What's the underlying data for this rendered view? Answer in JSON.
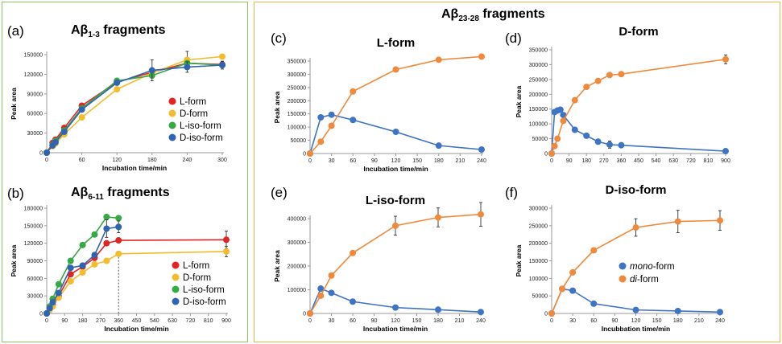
{
  "colors": {
    "L": "#e02424",
    "D": "#f2bc2e",
    "Liso": "#36a844",
    "Diso": "#2f64b3",
    "mono": "#3f73c4",
    "di": "#ef8a3c"
  },
  "group_left": {
    "title_main": "Aβ",
    "title_sub": "1-3",
    "title_rest": " fragments"
  },
  "group_right": {
    "title_main": "Aβ",
    "title_sub": "23-28",
    "title_rest": " fragments"
  },
  "panel_b_title": {
    "main": "Aβ",
    "sub": "6-11",
    "rest": " fragments"
  },
  "panel_labels": [
    "(a)",
    "(b)",
    "(c)",
    "(d)",
    "(e)",
    "(f)"
  ],
  "chart_data": [
    {
      "id": "a",
      "type": "line",
      "title": "",
      "xlabel": "Incubation time/min",
      "ylabel": "Peak area",
      "xlim": [
        0,
        300
      ],
      "ylim": [
        0,
        150000
      ],
      "xticks": [
        0,
        60,
        120,
        180,
        240,
        300
      ],
      "yticks": [
        0,
        30000,
        60000,
        90000,
        120000,
        150000
      ],
      "legend": "right",
      "series": [
        {
          "name": "L-form",
          "color": "L",
          "x": [
            0,
            10,
            15,
            30,
            60,
            120,
            180,
            240,
            300
          ],
          "y": [
            0,
            15000,
            20000,
            38000,
            72000,
            108000,
            123000,
            137000,
            135000
          ],
          "err": [
            0,
            0,
            0,
            0,
            0,
            0,
            0,
            0,
            0
          ]
        },
        {
          "name": "D-form",
          "color": "D",
          "x": [
            0,
            10,
            15,
            30,
            60,
            120,
            180,
            240,
            300
          ],
          "y": [
            0,
            10000,
            14000,
            28000,
            54000,
            97000,
            122000,
            142000,
            147000
          ],
          "err": [
            0,
            0,
            0,
            0,
            0,
            0,
            0,
            13000,
            0
          ]
        },
        {
          "name": "L-iso-form",
          "color": "Liso",
          "x": [
            0,
            10,
            15,
            30,
            60,
            120,
            180,
            240,
            300
          ],
          "y": [
            0,
            12000,
            18000,
            34000,
            68000,
            110000,
            118000,
            137000,
            134000
          ],
          "err": [
            0,
            0,
            0,
            0,
            0,
            0,
            0,
            0,
            0
          ]
        },
        {
          "name": "D-iso-form",
          "color": "Diso",
          "x": [
            0,
            10,
            15,
            30,
            60,
            120,
            180,
            240,
            300
          ],
          "y": [
            0,
            11000,
            16000,
            32000,
            66000,
            107000,
            126000,
            131000,
            134000
          ],
          "err": [
            0,
            0,
            0,
            0,
            0,
            0,
            16000,
            8000,
            6000
          ]
        }
      ]
    },
    {
      "id": "b",
      "type": "line",
      "title": "",
      "xlabel": "Incubation time/min",
      "ylabel": "Peak area",
      "xlim": [
        0,
        900
      ],
      "ylim": [
        0,
        180000
      ],
      "xticks": [
        0,
        90,
        180,
        270,
        360,
        450,
        540,
        630,
        720,
        810,
        900
      ],
      "yticks": [
        0,
        30000,
        60000,
        90000,
        120000,
        150000,
        180000
      ],
      "legend": "right",
      "series": [
        {
          "name": "L-form",
          "color": "L",
          "x": [
            0,
            15,
            30,
            60,
            120,
            180,
            240,
            300,
            360,
            900
          ],
          "y": [
            0,
            8000,
            15000,
            30000,
            67000,
            80000,
            95000,
            120000,
            125000,
            126000
          ],
          "err": [
            0,
            0,
            0,
            0,
            0,
            0,
            0,
            0,
            0,
            15000
          ]
        },
        {
          "name": "D-form",
          "color": "D",
          "x": [
            0,
            15,
            30,
            60,
            120,
            180,
            240,
            300,
            360,
            900
          ],
          "y": [
            0,
            6000,
            12000,
            27000,
            55000,
            70000,
            84000,
            90000,
            102000,
            106000
          ],
          "err": [
            0,
            0,
            0,
            0,
            0,
            0,
            0,
            0,
            0,
            9000
          ]
        },
        {
          "name": "L-iso-form",
          "color": "Liso",
          "x": [
            0,
            15,
            30,
            60,
            120,
            180,
            240,
            300,
            360
          ],
          "y": [
            0,
            12000,
            25000,
            50000,
            90000,
            117000,
            135000,
            165000,
            163000
          ],
          "err": [
            0,
            0,
            0,
            0,
            0,
            0,
            0,
            0,
            0
          ]
        },
        {
          "name": "D-iso-form",
          "color": "Diso",
          "x": [
            0,
            15,
            30,
            60,
            120,
            180,
            240,
            300,
            360
          ],
          "y": [
            0,
            9000,
            19000,
            35000,
            78000,
            82000,
            100000,
            145000,
            148000
          ],
          "err": [
            0,
            0,
            0,
            0,
            0,
            0,
            0,
            15000,
            10000
          ]
        }
      ]
    },
    {
      "id": "c",
      "type": "line",
      "title": "L-form",
      "xlabel": "Incubation time/min",
      "ylabel": "Peak area",
      "xlim": [
        0,
        240
      ],
      "ylim": [
        0,
        350000
      ],
      "xticks": [
        0,
        30,
        60,
        90,
        120,
        150,
        180,
        210,
        240
      ],
      "yticks": [
        0,
        50000,
        100000,
        150000,
        200000,
        250000,
        300000,
        350000
      ],
      "series": [
        {
          "name": "mono-form",
          "color": "mono",
          "x": [
            0,
            15,
            30,
            60,
            120,
            180,
            240
          ],
          "y": [
            0,
            137000,
            147000,
            127000,
            82000,
            30000,
            15000
          ],
          "err": [
            0,
            0,
            0,
            0,
            0,
            0,
            0
          ]
        },
        {
          "name": "di-form",
          "color": "di",
          "x": [
            0,
            15,
            30,
            60,
            120,
            180,
            240
          ],
          "y": [
            0,
            45000,
            105000,
            235000,
            318000,
            355000,
            367000
          ],
          "err": [
            0,
            0,
            0,
            0,
            0,
            0,
            0
          ]
        }
      ]
    },
    {
      "id": "d",
      "type": "line",
      "title": "D-form",
      "xlabel": "",
      "ylabel": "Peak area",
      "xlim": [
        0,
        900
      ],
      "ylim": [
        0,
        350000
      ],
      "xticks": [
        0,
        90,
        180,
        270,
        360,
        450,
        540,
        630,
        720,
        810,
        900
      ],
      "yticks": [
        0,
        50000,
        100000,
        150000,
        200000,
        250000,
        300000,
        350000
      ],
      "series": [
        {
          "name": "mono-form",
          "color": "mono",
          "x": [
            0,
            15,
            30,
            45,
            60,
            120,
            180,
            240,
            300,
            360,
            900
          ],
          "y": [
            0,
            140000,
            145000,
            148000,
            130000,
            80000,
            60000,
            40000,
            30000,
            28000,
            8000
          ],
          "err": [
            0,
            0,
            0,
            0,
            0,
            0,
            0,
            0,
            12000,
            0,
            0
          ]
        },
        {
          "name": "di-form",
          "color": "di",
          "x": [
            0,
            15,
            30,
            60,
            120,
            180,
            240,
            300,
            360,
            900
          ],
          "y": [
            0,
            25000,
            50000,
            110000,
            180000,
            225000,
            245000,
            265000,
            268000,
            318000
          ],
          "err": [
            0,
            0,
            0,
            0,
            0,
            0,
            0,
            0,
            0,
            15000
          ]
        }
      ]
    },
    {
      "id": "e",
      "type": "line",
      "title": "L-iso-form",
      "xlabel": "Incubation time/min",
      "ylabel": "Peak area",
      "xlim": [
        0,
        240
      ],
      "ylim": [
        0,
        400000
      ],
      "xticks": [
        0,
        30,
        60,
        90,
        120,
        150,
        180,
        210,
        240
      ],
      "yticks": [
        0,
        100000,
        200000,
        300000,
        400000
      ],
      "series": [
        {
          "name": "mono-form",
          "color": "mono",
          "x": [
            0,
            15,
            30,
            60,
            120,
            180,
            240
          ],
          "y": [
            0,
            105000,
            87000,
            50000,
            25000,
            16000,
            6000
          ],
          "err": [
            0,
            0,
            0,
            0,
            0,
            0,
            0
          ]
        },
        {
          "name": "di-form",
          "color": "di",
          "x": [
            0,
            15,
            30,
            60,
            120,
            180,
            240
          ],
          "y": [
            0,
            75000,
            160000,
            255000,
            370000,
            405000,
            418000
          ],
          "err": [
            0,
            0,
            0,
            0,
            40000,
            40000,
            50000
          ]
        }
      ]
    },
    {
      "id": "f",
      "type": "line",
      "title": "D-iso-form",
      "xlabel": "Incubbation time/min",
      "ylabel": "Peak area",
      "xlim": [
        0,
        240
      ],
      "ylim": [
        0,
        300000
      ],
      "xticks": [
        0,
        30,
        60,
        90,
        120,
        150,
        180,
        210,
        240
      ],
      "yticks": [
        0,
        50000,
        100000,
        150000,
        200000,
        250000,
        300000
      ],
      "legend": "right",
      "series": [
        {
          "name": "mono-form",
          "color": "mono",
          "x": [
            0,
            15,
            30,
            60,
            120,
            180,
            240
          ],
          "y": [
            0,
            70000,
            65000,
            28000,
            10000,
            7000,
            4000
          ],
          "err": [
            0,
            0,
            0,
            0,
            0,
            0,
            0
          ]
        },
        {
          "name": "di-form",
          "color": "di",
          "x": [
            0,
            15,
            30,
            60,
            120,
            180,
            240
          ],
          "y": [
            0,
            70000,
            117000,
            180000,
            245000,
            262000,
            265000
          ],
          "err": [
            0,
            0,
            0,
            0,
            25000,
            32000,
            28000
          ]
        }
      ]
    }
  ],
  "legend_c": {
    "mono": "mono",
    "mono_suffix": "-form",
    "di": "di",
    "di_suffix": "-form"
  }
}
